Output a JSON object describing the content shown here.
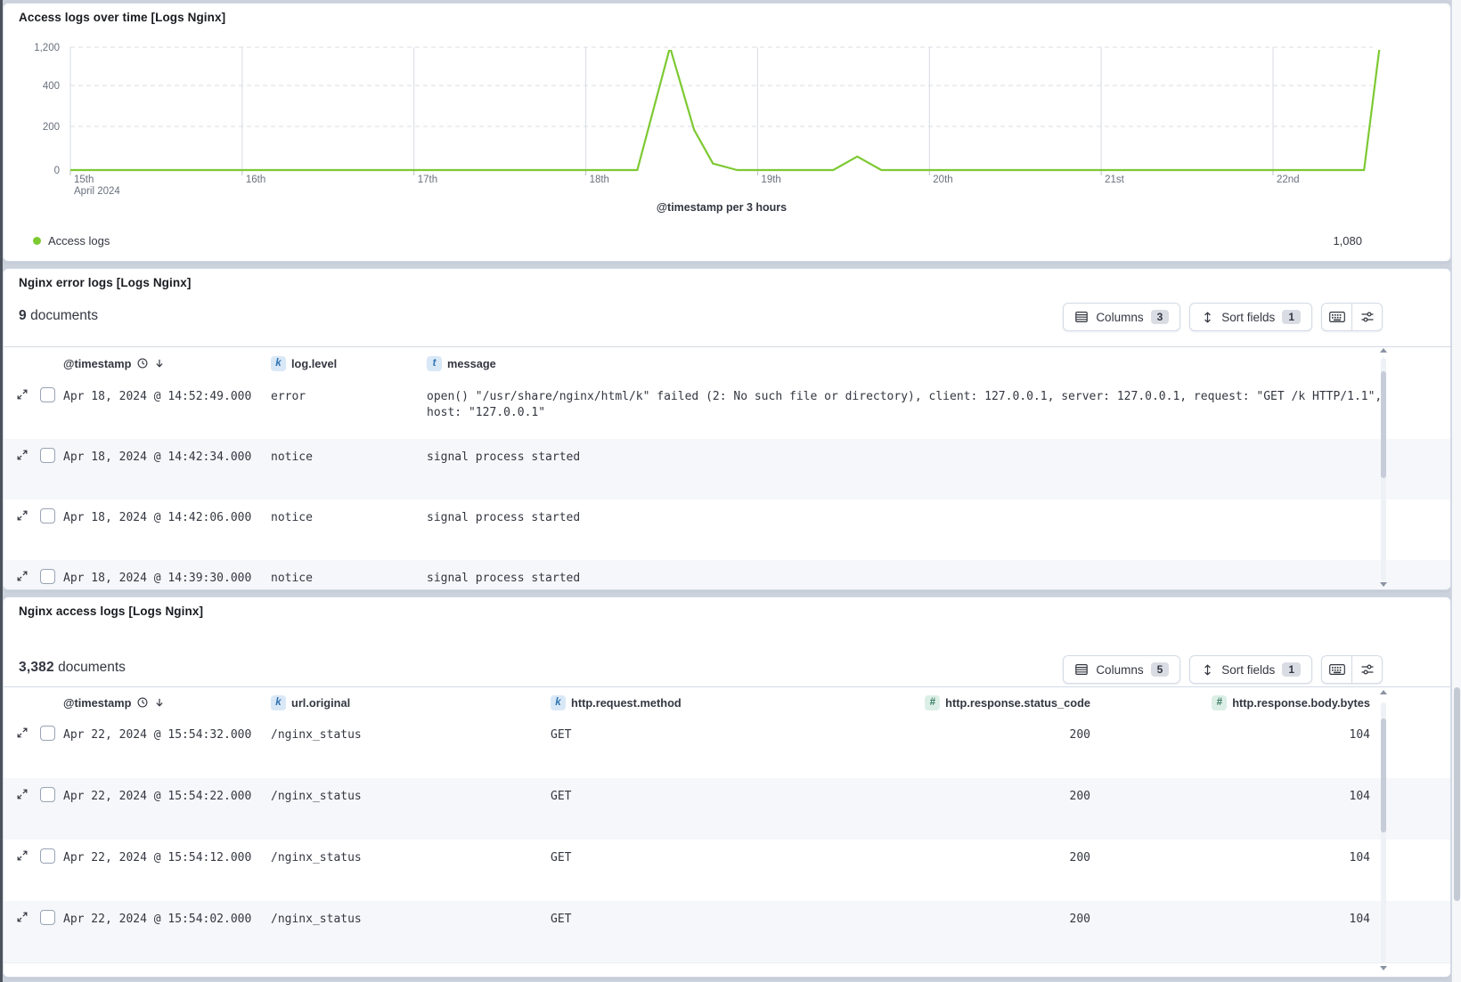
{
  "colors": {
    "series_green": "#7DC932",
    "token_keyword": "#3173b0",
    "token_number": "#367a62"
  },
  "chart_panel": {
    "title": "Access logs over time [Logs Nginx]",
    "x_axis_title": "@timestamp per 3 hours",
    "legend": {
      "label": "Access logs",
      "value": "1,080"
    },
    "chart_data": {
      "type": "line",
      "title": "Access logs over time [Logs Nginx]",
      "xlabel": "@timestamp per 3 hours",
      "ylabel": "",
      "x_tick_labels": [
        "15th",
        "16th",
        "17th",
        "18th",
        "19th",
        "20th",
        "21st",
        "22nd"
      ],
      "x_tick_sublabel": "April 2024",
      "y_tick_values": [
        0,
        200,
        400,
        1200
      ],
      "y_tick_labels": [
        "0",
        "200",
        "400",
        "1,200"
      ],
      "x_range_days": [
        0,
        7.62
      ],
      "grid": true,
      "legend_position": "bottom",
      "series": [
        {
          "name": "Access logs",
          "color": "#7DC932",
          "legend_value": "1,080",
          "points_day_value": [
            [
              0,
              0
            ],
            [
              3.3,
              0
            ],
            [
              3.49,
              1200
            ],
            [
              3.63,
              185
            ],
            [
              3.74,
              30
            ],
            [
              3.88,
              0
            ],
            [
              4.44,
              0
            ],
            [
              4.58,
              62
            ],
            [
              4.72,
              0
            ],
            [
              7.53,
              0
            ],
            [
              7.62,
              1200
            ]
          ]
        }
      ]
    }
  },
  "error_panel": {
    "title": "Nginx error logs [Logs Nginx]",
    "doc_count": "9",
    "doc_word": "documents",
    "toolbar": {
      "columns_label": "Columns",
      "columns_count": "3",
      "sort_label": "Sort fields",
      "sort_count": "1"
    },
    "columns": [
      {
        "label": "@timestamp"
      },
      {
        "label": "log.level",
        "token": "k"
      },
      {
        "label": "message",
        "token": "t"
      }
    ],
    "rows": [
      {
        "timestamp": "Apr 18, 2024 @ 14:52:49.000",
        "level": "error",
        "message": "open() \"/usr/share/nginx/html/k\" failed (2: No such file or directory), client: 127.0.0.1, server: 127.0.0.1, request: \"GET /k HTTP/1.1\",",
        "message_wrap": "host: \"127.0.0.1\""
      },
      {
        "timestamp": "Apr 18, 2024 @ 14:42:34.000",
        "level": "notice",
        "message": "signal process started"
      },
      {
        "timestamp": "Apr 18, 2024 @ 14:42:06.000",
        "level": "notice",
        "message": "signal process started"
      },
      {
        "timestamp": "Apr 18, 2024 @ 14:39:30.000",
        "level": "notice",
        "message": "signal process started"
      }
    ]
  },
  "access_panel": {
    "title": "Nginx access logs [Logs Nginx]",
    "doc_count": "3,382",
    "doc_word": "documents",
    "toolbar": {
      "columns_label": "Columns",
      "columns_count": "5",
      "sort_label": "Sort fields",
      "sort_count": "1"
    },
    "columns": [
      {
        "label": "@timestamp"
      },
      {
        "label": "url.original",
        "token": "k"
      },
      {
        "label": "http.request.method",
        "token": "k"
      },
      {
        "label": "http.response.status_code",
        "token": "#"
      },
      {
        "label": "http.response.body.bytes",
        "token": "#"
      }
    ],
    "rows": [
      {
        "timestamp": "Apr 22, 2024 @ 15:54:32.000",
        "url": "/nginx_status",
        "method": "GET",
        "status": "200",
        "bytes": "104"
      },
      {
        "timestamp": "Apr 22, 2024 @ 15:54:22.000",
        "url": "/nginx_status",
        "method": "GET",
        "status": "200",
        "bytes": "104"
      },
      {
        "timestamp": "Apr 22, 2024 @ 15:54:12.000",
        "url": "/nginx_status",
        "method": "GET",
        "status": "200",
        "bytes": "104"
      },
      {
        "timestamp": "Apr 22, 2024 @ 15:54:02.000",
        "url": "/nginx_status",
        "method": "GET",
        "status": "200",
        "bytes": "104"
      }
    ]
  }
}
